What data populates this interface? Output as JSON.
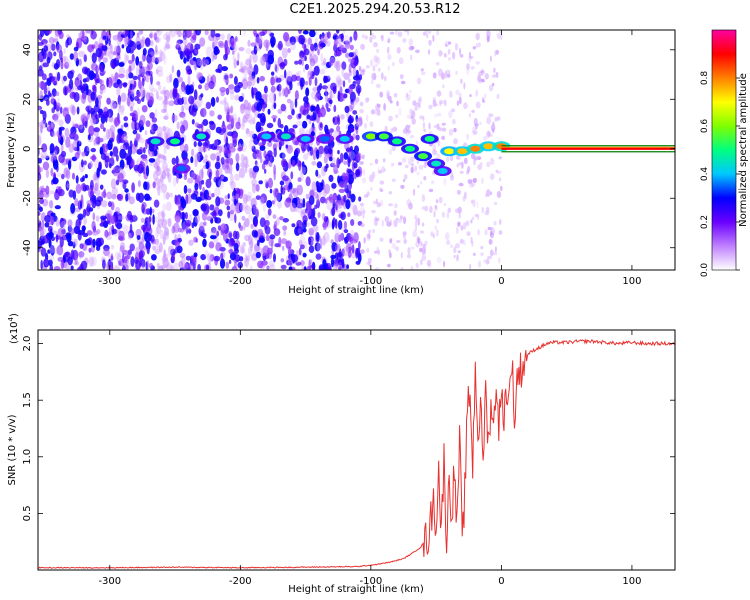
{
  "title": "C2E1.2025.294.20.53.R12",
  "colors": {
    "snr_line": "#e8312f",
    "frame": "#000000",
    "scatter_main": "#7b3fe4",
    "scatter_light": "#c9b2f3"
  },
  "chart_data": [
    {
      "type": "heatmap",
      "title": "C2E1.2025.294.20.53.R12",
      "xlabel": "Height of straight line (km)",
      "ylabel": "Frequency (Hz)",
      "xlim": [
        -355,
        133
      ],
      "ylim": [
        -49,
        48
      ],
      "xticks": [
        -300,
        -200,
        -100,
        0,
        100
      ],
      "yticks": [
        -40,
        -20,
        0,
        20,
        40
      ],
      "colorbar": {
        "label": "Normalized spectral amplitude",
        "range": [
          0,
          1
        ],
        "ticks": [
          "0.0",
          "0.2",
          "0.4",
          "0.6",
          "0.8"
        ],
        "colormap": [
          "#ffffff",
          "#c080ff",
          "#6a00ff",
          "#0000ff",
          "#00c8ff",
          "#00ff80",
          "#80ff00",
          "#ffff00",
          "#ff8000",
          "#ff0000",
          "#ff00a0"
        ]
      },
      "regions": {
        "noisy_scatter_x": [
          -355,
          -108
        ],
        "sparse_scatter_x": [
          -108,
          0
        ],
        "carrier_line_x": [
          0,
          133
        ],
        "carrier_line_freq": 0
      },
      "features": [
        {
          "x": -265,
          "y": 3,
          "amp": 0.45
        },
        {
          "x": -250,
          "y": 3,
          "amp": 0.5
        },
        {
          "x": -230,
          "y": 5,
          "amp": 0.45
        },
        {
          "x": -245,
          "y": -8,
          "amp": 0.35
        },
        {
          "x": -180,
          "y": 5,
          "amp": 0.4
        },
        {
          "x": -165,
          "y": 5,
          "amp": 0.45
        },
        {
          "x": -150,
          "y": 4,
          "amp": 0.4
        },
        {
          "x": -135,
          "y": 4,
          "amp": 0.35
        },
        {
          "x": -120,
          "y": 4,
          "amp": 0.4
        },
        {
          "x": -100,
          "y": 5,
          "amp": 0.6
        },
        {
          "x": -90,
          "y": 5,
          "amp": 0.55
        },
        {
          "x": -80,
          "y": 3,
          "amp": 0.5
        },
        {
          "x": -70,
          "y": 0,
          "amp": 0.5
        },
        {
          "x": -60,
          "y": -3,
          "amp": 0.55
        },
        {
          "x": -55,
          "y": 4,
          "amp": 0.5
        },
        {
          "x": -50,
          "y": -6,
          "amp": 0.45
        },
        {
          "x": -45,
          "y": -9,
          "amp": 0.4
        },
        {
          "x": -40,
          "y": -1,
          "amp": 0.7
        },
        {
          "x": -30,
          "y": -1,
          "amp": 0.75
        },
        {
          "x": -20,
          "y": 0,
          "amp": 0.8
        },
        {
          "x": -10,
          "y": 1,
          "amp": 0.75
        },
        {
          "x": 0,
          "y": 1,
          "amp": 0.8
        }
      ]
    },
    {
      "type": "line",
      "xlabel": "Height of straight line (km)",
      "ylabel": "SNR (10 * v/v)",
      "multiplier_label": "(x10",
      "multiplier_exp": "4",
      "multiplier_close": ")",
      "xlim": [
        -355,
        133
      ],
      "ylim": [
        0,
        2.12
      ],
      "xticks": [
        -300,
        -200,
        -100,
        0,
        100
      ],
      "yticks": [
        0.5,
        1.0,
        1.5,
        2.0
      ],
      "ytick_labels": [
        "0.5",
        "1.0",
        "1.5",
        "2.0"
      ],
      "series": [
        {
          "x": [
            -355,
            -300,
            -250,
            -200,
            -150,
            -110,
            -95,
            -85,
            -75,
            -68,
            -62,
            -56,
            -52,
            -50,
            -48,
            -46,
            -44,
            -42,
            -40,
            -38,
            -36,
            -34,
            -32,
            -30,
            -28,
            -26,
            -24,
            -22,
            -20,
            -18,
            -16,
            -14,
            -12,
            -10,
            -8,
            -6,
            -4,
            -2,
            0,
            2,
            4,
            6,
            8,
            10,
            12,
            14,
            16,
            18,
            20,
            22,
            26,
            30,
            35,
            40,
            50,
            60,
            70,
            80,
            90,
            100,
            110,
            120,
            133
          ],
          "values": [
            0.02,
            0.02,
            0.025,
            0.02,
            0.025,
            0.03,
            0.05,
            0.07,
            0.1,
            0.15,
            0.2,
            0.3,
            0.6,
            0.4,
            0.9,
            0.3,
            1.0,
            0.25,
            0.8,
            0.5,
            0.9,
            0.35,
            1.2,
            0.2,
            0.7,
            1.4,
            1.6,
            0.9,
            1.8,
            1.2,
            1.4,
            1.0,
            1.6,
            1.1,
            1.5,
            1.2,
            1.7,
            1.3,
            1.5,
            1.4,
            1.6,
            1.5,
            1.9,
            1.3,
            1.7,
            1.75,
            1.8,
            1.85,
            1.9,
            1.92,
            1.95,
            1.97,
            2.0,
            2.01,
            2.01,
            2.02,
            2.02,
            2.01,
            2.0,
            2.01,
            2.0,
            2.0,
            2.0
          ]
        }
      ]
    }
  ]
}
